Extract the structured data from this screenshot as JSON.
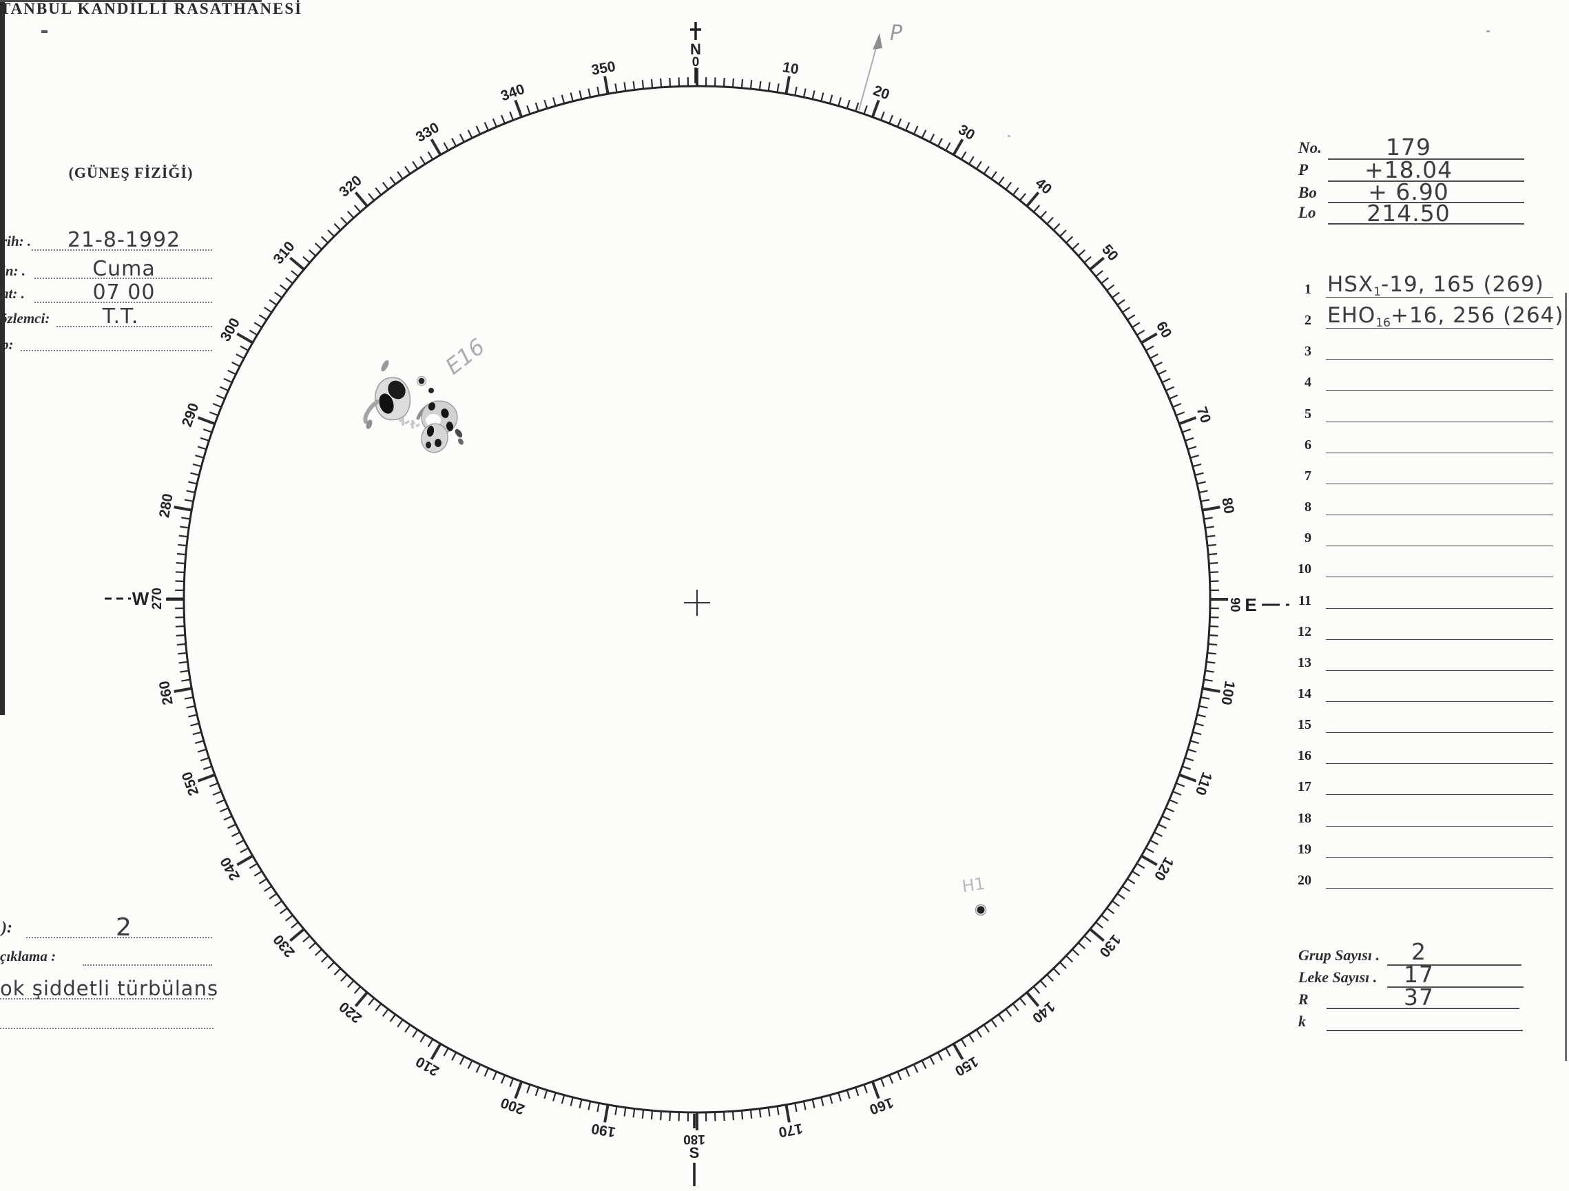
{
  "header": {
    "observatory_line1": "TANBUL KANDİLLİ RASATHANESİ",
    "observatory_line2": "(GÜNEŞ FİZİĞİ)"
  },
  "observation": {
    "fields": [
      {
        "label": "rih: .",
        "value": "21-8-1992"
      },
      {
        "label": "in: .",
        "value": "Cuma"
      },
      {
        "label": "at: .",
        "value": "07 00"
      },
      {
        "label": "özlemci:",
        "value": "T.T."
      },
      {
        "label": "p:",
        "value": ""
      }
    ]
  },
  "quality": {
    "label": "):",
    "value": "2"
  },
  "remarks": {
    "label": "çıklama :",
    "note": "ok şiddetli türbülans"
  },
  "ephemeris": {
    "fields": [
      {
        "label": "No.",
        "value": "179"
      },
      {
        "label": "P",
        "value": "+18.04"
      },
      {
        "label": "Bo",
        "value": "+ 6.90"
      },
      {
        "label": "Lo",
        "value": "214.50"
      }
    ]
  },
  "spot_groups": {
    "row_count": 20,
    "entries": [
      {
        "row": 1,
        "class": "HSX",
        "subscript": "1",
        "values": "-19, 165 (269)"
      },
      {
        "row": 2,
        "class": "EHO",
        "subscript": "16",
        "values": "+16, 256 (264)"
      }
    ]
  },
  "summary": {
    "fields": [
      {
        "label": "Grup Sayısı .",
        "value": "2"
      },
      {
        "label": "Leke Sayısı .",
        "value": "17"
      },
      {
        "label": "R",
        "value": "37"
      },
      {
        "label": "k",
        "value": ""
      }
    ]
  },
  "solar_disk": {
    "degree_labels": [
      10,
      20,
      30,
      40,
      50,
      60,
      70,
      80,
      100,
      110,
      120,
      130,
      140,
      150,
      160,
      170,
      190,
      200,
      210,
      220,
      230,
      240,
      250,
      260,
      280,
      290,
      300,
      310,
      320,
      330,
      340,
      350
    ],
    "cardinals": {
      "north_letter": "N",
      "north_degree": "0",
      "east_letter": "E",
      "east_degree": "90",
      "south_letter": "S",
      "south_degree": "180",
      "west_letter": "W",
      "west_degree": "270"
    },
    "annotations": {
      "group1_label": "E16",
      "group2_label": "H1",
      "position_angle_label": "P"
    }
  }
}
